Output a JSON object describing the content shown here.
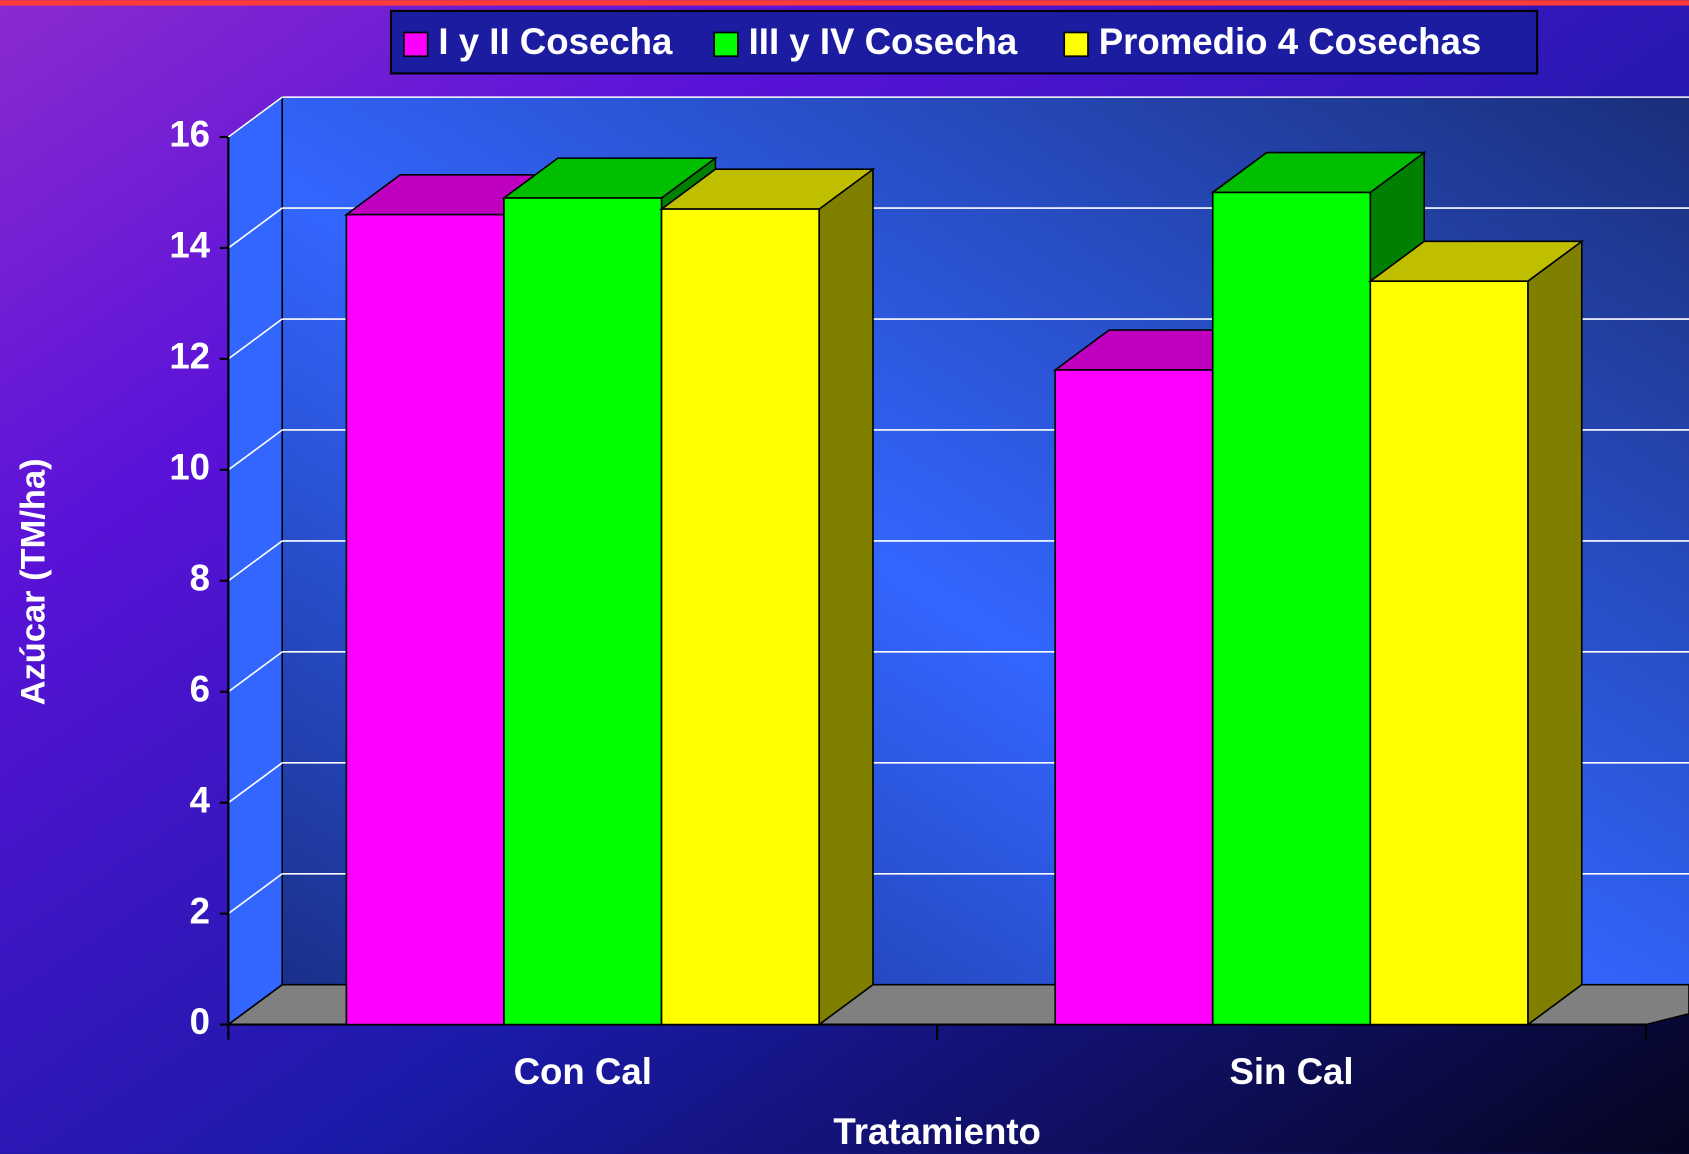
{
  "chart_data": {
    "type": "bar3d",
    "categories": [
      "Con Cal",
      "Sin Cal"
    ],
    "series": [
      {
        "name": "I y II Cosecha",
        "color": "#ff00ff",
        "values": [
          14.6,
          11.8
        ]
      },
      {
        "name": "III y IV Cosecha",
        "color": "#00ff00",
        "values": [
          14.9,
          15.0
        ]
      },
      {
        "name": "Promedio 4 Cosechas",
        "color": "#ffff00",
        "values": [
          14.7,
          13.4
        ]
      }
    ],
    "ylim": [
      0,
      16
    ],
    "yticks": [
      0,
      2,
      4,
      6,
      8,
      10,
      12,
      14,
      16
    ],
    "y_label": "Azúcar (TM/ha)",
    "x_label": "Tratamiento",
    "grid": true,
    "legend": "top"
  }
}
